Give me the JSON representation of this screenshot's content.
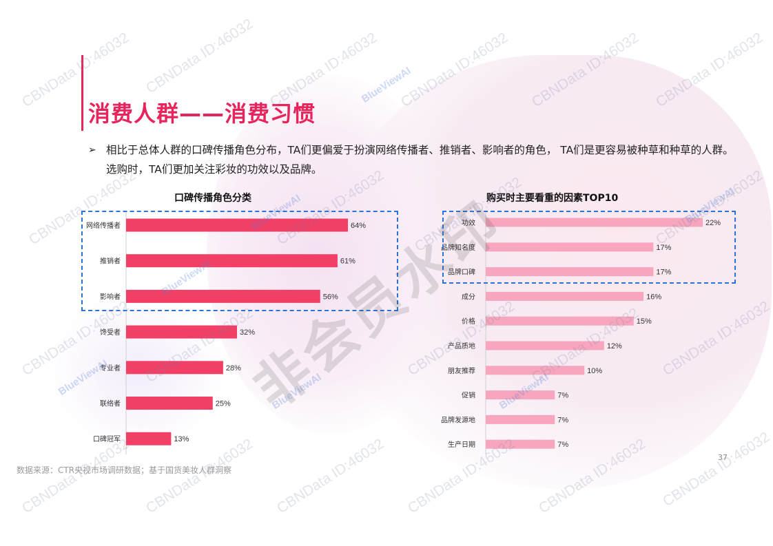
{
  "page": {
    "title": "消费人群——消费习惯",
    "bullet_arrow": "➢",
    "bullet": "相比于总体人群的口碑传播角色分布，TA们更偏爱于扮演网络传播者、推销者、影响者的角色， TA们是更容易被种草和种草的人群。选购时，TA们更加关注彩妆的功效以及品牌。",
    "source": "数据来源：CTR央视市场调研数据；基于国货美妆人群洞察",
    "page_number": "37",
    "stamp": "非会员水印",
    "watermark": "CBNData ID:46032",
    "watermark_brand": "BlueViewAI",
    "colors": {
      "accent": "#e8245c",
      "bar_left": "#f23f66",
      "bar_right": "#f7a6bd",
      "highlight_box": "#2a73d6"
    }
  },
  "chart_data": [
    {
      "type": "bar",
      "orientation": "horizontal",
      "title": "口碑传播角色分类",
      "categories": [
        "网络传播者",
        "推销者",
        "影响者",
        "馋受者",
        "专业者",
        "联络者",
        "口碑冠军"
      ],
      "values": [
        64,
        61,
        56,
        32,
        28,
        25,
        13
      ],
      "value_labels": [
        "64%",
        "61%",
        "56%",
        "32%",
        "28%",
        "25%",
        "13%"
      ],
      "unit": "%",
      "highlighted_categories": [
        "网络传播者",
        "推销者",
        "影响者"
      ],
      "color": "#f23f66"
    },
    {
      "type": "bar",
      "orientation": "horizontal",
      "title": "购买时主要看重的因素TOP10",
      "categories": [
        "功效",
        "品牌知名度",
        "品牌口碑",
        "成分",
        "价格",
        "产品质地",
        "朋友推荐",
        "促销",
        "品牌发源地",
        "生产日期"
      ],
      "values": [
        22,
        17,
        17,
        16,
        15,
        12,
        10,
        7,
        7,
        7
      ],
      "value_labels": [
        "22%",
        "17%",
        "17%",
        "16%",
        "15%",
        "12%",
        "10%",
        "7%",
        "7%",
        "7%"
      ],
      "unit": "%",
      "highlighted_categories": [
        "功效",
        "品牌知名度",
        "品牌口碑"
      ],
      "color": "#f7a6bd"
    }
  ]
}
